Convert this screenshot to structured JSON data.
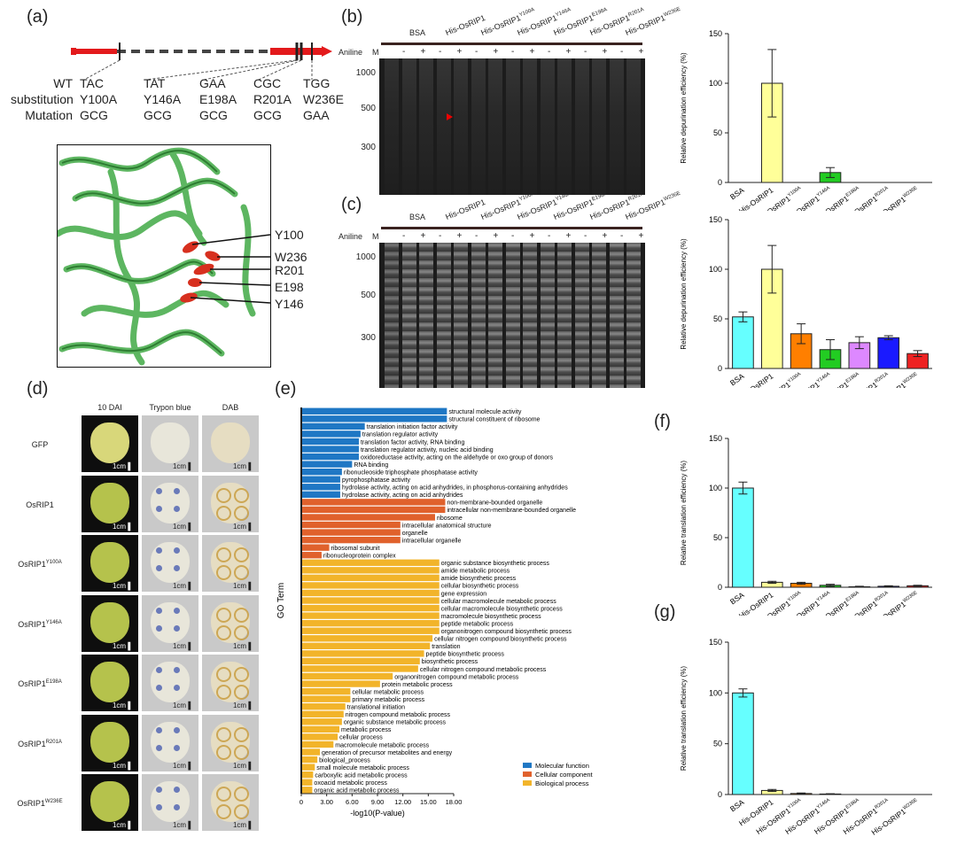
{
  "panel_labels": {
    "a": "(a)",
    "b": "(b)",
    "c": "(c)",
    "d": "(d)",
    "e": "(e)",
    "f": "(f)",
    "g": "(g)"
  },
  "panel_a": {
    "row_headers": [
      "WT",
      "substitution",
      "Mutation"
    ],
    "columns": [
      {
        "wt": "TAC",
        "sub": "Y100A",
        "mut": "GCG"
      },
      {
        "wt": "TAT",
        "sub": "Y146A",
        "mut": "GCG"
      },
      {
        "wt": "GAA",
        "sub": "E198A",
        "mut": "GCG"
      },
      {
        "wt": "CGC",
        "sub": "R201A",
        "mut": "GCG"
      },
      {
        "wt": "TGG",
        "sub": "W236E",
        "mut": "GAA"
      }
    ],
    "residues": [
      "Y100",
      "W236",
      "R201",
      "E198",
      "Y146"
    ],
    "colors": {
      "gene": "#e31a1c",
      "structure": "#4caf50",
      "residue": "#d7301f"
    }
  },
  "gels": {
    "header_groups": [
      "BSA",
      "His-OsRIP1",
      "His-OsRIP1",
      "His-OsRIP1",
      "His-OsRIP1",
      "His-OsRIP1",
      "His-OsRIP1"
    ],
    "header_sups": [
      "",
      "",
      "Y100A",
      "Y146A",
      "E198A",
      "R201A",
      "W236E"
    ],
    "aniline_label": "Aniline",
    "marker_label": "M",
    "minus": "-",
    "plus": "+",
    "markers": [
      "1000",
      "500",
      "300"
    ]
  },
  "bar_categories": [
    "BSA",
    "His-OsRIP1",
    "His-OsRIP1",
    "His-OsRIP1",
    "His-OsRIP1",
    "His-OsRIP1",
    "His-OsRIP1"
  ],
  "bar_category_sups": [
    "",
    "",
    "Y100A",
    "Y146A",
    "E198A",
    "R201A",
    "W236E"
  ],
  "chart_data": [
    {
      "id": "b",
      "type": "bar",
      "ylabel": "Relative depurination efficiency (%)",
      "ylim": [
        0,
        150
      ],
      "yticks": [
        0,
        50,
        100,
        150
      ],
      "categories": [
        "BSA",
        "His-OsRIP1",
        "His-OsRIP1 Y100A",
        "His-OsRIP1 Y146A",
        "His-OsRIP1 E198A",
        "His-OsRIP1 R201A",
        "His-OsRIP1 W236E"
      ],
      "values": [
        0,
        100,
        0,
        10,
        0,
        0,
        0
      ],
      "errors": [
        0,
        34,
        0,
        5,
        0,
        0,
        0
      ],
      "colors": [
        "#66ffff",
        "#ffff99",
        "#ff7f00",
        "#22cc22",
        "#dd88ff",
        "#1a1aff",
        "#ee2222"
      ]
    },
    {
      "id": "c",
      "type": "bar",
      "ylabel": "Relative depurination efficiency (%)",
      "ylim": [
        0,
        150
      ],
      "yticks": [
        0,
        50,
        100,
        150
      ],
      "categories": [
        "BSA",
        "His-OsRIP1",
        "His-OsRIP1 Y100A",
        "His-OsRIP1 Y146A",
        "His-OsRIP1 E198A",
        "His-OsRIP1 R201A",
        "His-OsRIP1 W236E"
      ],
      "values": [
        52,
        100,
        35,
        19,
        26,
        31,
        15
      ],
      "errors": [
        5,
        24,
        10,
        10,
        6,
        2,
        3
      ],
      "colors": [
        "#66ffff",
        "#ffff99",
        "#ff7f00",
        "#22cc22",
        "#dd88ff",
        "#1a1aff",
        "#ee2222"
      ]
    },
    {
      "id": "f",
      "type": "bar",
      "ylabel": "Relative translation efficiency (%)",
      "ylim": [
        0,
        150
      ],
      "yticks": [
        0,
        50,
        100,
        150
      ],
      "categories": [
        "BSA",
        "His-OsRIP1",
        "His-OsRIP1 Y100A",
        "His-OsRIP1 Y146A",
        "His-OsRIP1 E198A",
        "His-OsRIP1 R201A",
        "His-OsRIP1 W236E"
      ],
      "values": [
        100,
        5,
        4,
        2,
        0.5,
        1,
        1.5
      ],
      "errors": [
        6,
        1,
        1,
        1,
        0.5,
        0.5,
        0.5
      ],
      "colors": [
        "#66ffff",
        "#ffff99",
        "#ff7f00",
        "#22cc22",
        "#dd88ff",
        "#1a1aff",
        "#ee2222"
      ]
    },
    {
      "id": "g",
      "type": "bar",
      "ylabel": "Relative translation efficiency (%)",
      "ylim": [
        0,
        150
      ],
      "yticks": [
        0,
        50,
        100,
        150
      ],
      "categories": [
        "BSA",
        "His-OsRIP1",
        "His-OsRIP1 Y100A",
        "His-OsRIP1 Y146A",
        "His-OsRIP1 E198A",
        "His-OsRIP1 R201A",
        "His-OsRIP1 W236E"
      ],
      "values": [
        100,
        4,
        1,
        0.5,
        0,
        0,
        0
      ],
      "errors": [
        4,
        1,
        0.5,
        0.3,
        0,
        0,
        0
      ],
      "colors": [
        "#66ffff",
        "#ffff99",
        "#ff7f00",
        "#22cc22",
        "#dd88ff",
        "#1a1aff",
        "#ee2222"
      ]
    },
    {
      "id": "e",
      "type": "bar",
      "orientation": "horizontal",
      "xlabel": "-log10(P-value)",
      "ylabel": "GO Term",
      "xlim": [
        0,
        18
      ],
      "xticks": [
        "0",
        "3.00",
        "6.00",
        "9.00",
        "12.00",
        "15.00",
        "18.00"
      ],
      "legend": [
        {
          "label": "Molecular function",
          "color": "#1f77c4"
        },
        {
          "label": "Cellular component",
          "color": "#e0612c"
        },
        {
          "label": "Biological process",
          "color": "#f2b42a"
        }
      ],
      "terms": [
        {
          "t": "structural molecule activity",
          "v": 17.2,
          "g": 0
        },
        {
          "t": "structural constituent of ribosome",
          "v": 17.2,
          "g": 0
        },
        {
          "t": "translation initiation factor activity",
          "v": 7.5,
          "g": 0
        },
        {
          "t": "translation regulator activity",
          "v": 7.0,
          "g": 0
        },
        {
          "t": "translation factor activity, RNA binding",
          "v": 6.8,
          "g": 0
        },
        {
          "t": "translation regulator activity, nucleic acid binding",
          "v": 6.8,
          "g": 0
        },
        {
          "t": "oxidoreductase activity, acting on the aldehyde or oxo group of donors",
          "v": 6.8,
          "g": 0
        },
        {
          "t": "RNA binding",
          "v": 6.0,
          "g": 0
        },
        {
          "t": "ribonucleoside triphosphate phosphatase activity",
          "v": 4.8,
          "g": 0
        },
        {
          "t": "pyrophosphatase activity",
          "v": 4.6,
          "g": 0
        },
        {
          "t": "hydrolase activity, acting on acid anhydrides, in phosphorus-containing anhydrides",
          "v": 4.6,
          "g": 0
        },
        {
          "t": "hydrolase activity, acting on acid anhydrides",
          "v": 4.6,
          "g": 0
        },
        {
          "t": "non-membrane-bounded organelle",
          "v": 17.0,
          "g": 1
        },
        {
          "t": "intracellular non-membrane-bounded organelle",
          "v": 17.0,
          "g": 1
        },
        {
          "t": "ribosome",
          "v": 15.8,
          "g": 1
        },
        {
          "t": "intracellular anatomical structure",
          "v": 11.7,
          "g": 1
        },
        {
          "t": "organelle",
          "v": 11.7,
          "g": 1
        },
        {
          "t": "intracellular organelle",
          "v": 11.7,
          "g": 1
        },
        {
          "t": "ribosomal subunit",
          "v": 3.3,
          "g": 1
        },
        {
          "t": "ribonucleoprotein complex",
          "v": 2.4,
          "g": 1
        },
        {
          "t": "organic substance biosynthetic process",
          "v": 16.3,
          "g": 2
        },
        {
          "t": "amide metabolic process",
          "v": 16.3,
          "g": 2
        },
        {
          "t": "amide biosynthetic process",
          "v": 16.3,
          "g": 2
        },
        {
          "t": "cellular biosynthetic process",
          "v": 16.3,
          "g": 2
        },
        {
          "t": "gene expression",
          "v": 16.3,
          "g": 2
        },
        {
          "t": "cellular macromolecule metabolic process",
          "v": 16.3,
          "g": 2
        },
        {
          "t": "cellular macromolecule biosynthetic process",
          "v": 16.3,
          "g": 2
        },
        {
          "t": "macromolecule biosynthetic process",
          "v": 16.3,
          "g": 2
        },
        {
          "t": "peptide metabolic process",
          "v": 16.3,
          "g": 2
        },
        {
          "t": "organonitrogen compound biosynthetic process",
          "v": 16.3,
          "g": 2
        },
        {
          "t": "cellular nitrogen compound biosynthetic process",
          "v": 15.5,
          "g": 2
        },
        {
          "t": "translation",
          "v": 15.2,
          "g": 2
        },
        {
          "t": "peptide biosynthetic process",
          "v": 14.5,
          "g": 2
        },
        {
          "t": "biosynthetic process",
          "v": 14.0,
          "g": 2
        },
        {
          "t": "cellular nitrogen compound metabolic process",
          "v": 13.8,
          "g": 2
        },
        {
          "t": "organonitrogen compound metabolic process",
          "v": 10.8,
          "g": 2
        },
        {
          "t": "protein metabolic process",
          "v": 9.3,
          "g": 2
        },
        {
          "t": "cellular metabolic process",
          "v": 5.8,
          "g": 2
        },
        {
          "t": "primary metabolic process",
          "v": 5.8,
          "g": 2
        },
        {
          "t": "translational initiation",
          "v": 5.2,
          "g": 2
        },
        {
          "t": "nitrogen compound metabolic process",
          "v": 5.0,
          "g": 2
        },
        {
          "t": "organic substance metabolic process",
          "v": 4.8,
          "g": 2
        },
        {
          "t": "metabolic process",
          "v": 4.5,
          "g": 2
        },
        {
          "t": "cellular process",
          "v": 4.3,
          "g": 2
        },
        {
          "t": "macromolecule metabolic process",
          "v": 3.8,
          "g": 2
        },
        {
          "t": "generation of precursor metabolites and energy",
          "v": 2.2,
          "g": 2
        },
        {
          "t": "biological_process",
          "v": 1.9,
          "g": 2
        },
        {
          "t": "small molecule metabolic process",
          "v": 1.6,
          "g": 2
        },
        {
          "t": "carboxylic acid metabolic process",
          "v": 1.4,
          "g": 2
        },
        {
          "t": "oxoacid metabolic process",
          "v": 1.3,
          "g": 2
        },
        {
          "t": "organic acid metabolic process",
          "v": 1.3,
          "g": 2
        }
      ]
    }
  ],
  "panel_d": {
    "col_headers": [
      "10 DAI",
      "Trypon blue",
      "DAB"
    ],
    "row_labels": [
      {
        "base": "GFP",
        "sup": ""
      },
      {
        "base": "OsRIP1",
        "sup": ""
      },
      {
        "base": "OsRIP1",
        "sup": "Y100A"
      },
      {
        "base": "OsRIP1",
        "sup": "Y146A"
      },
      {
        "base": "OsRIP1",
        "sup": "E198A"
      },
      {
        "base": "OsRIP1",
        "sup": "R201A"
      },
      {
        "base": "OsRIP1",
        "sup": "W236E"
      }
    ],
    "scale_bar": "1cm"
  }
}
